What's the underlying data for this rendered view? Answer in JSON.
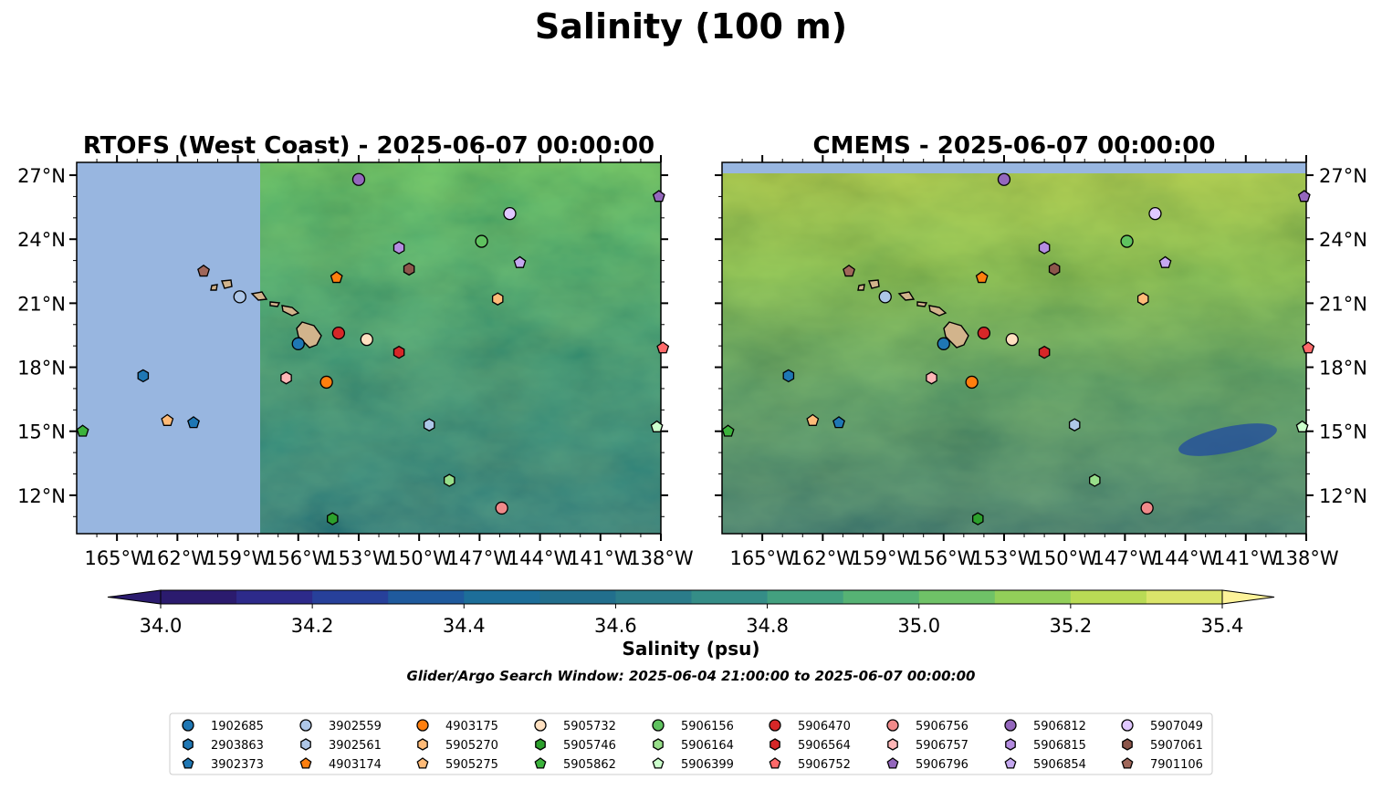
{
  "figure": {
    "title": "Salinity (100 m)",
    "colorbar_label": "Salinity (psu)",
    "colorbar_ticks": [
      "34.0",
      "34.2",
      "34.4",
      "34.6",
      "34.8",
      "35.0",
      "35.2",
      "35.4"
    ],
    "search_window": "Glider/Argo Search Window: 2025-06-04 21:00:00 to 2025-06-07 00:00:00"
  },
  "colors": {
    "land_mask": "#98b6e0",
    "island": "#d2b48c",
    "colorbar": [
      "#2b1b6e",
      "#2d2a8a",
      "#27409a",
      "#1f5a9d",
      "#1d6e99",
      "#226f8d",
      "#2b7c8a",
      "#358d87",
      "#43a07f",
      "#56b274",
      "#6fc267",
      "#92cf59",
      "#b9db55",
      "#dbe56a",
      "#fdf39a"
    ]
  },
  "panels": [
    {
      "title": "RTOFS (West Coast) - 2025-06-07 00:00:00",
      "lat_side": "left"
    },
    {
      "title": "CMEMS - 2025-06-07 00:00:00",
      "lat_side": "right"
    }
  ],
  "axes": {
    "lon_range": [
      -167,
      -138
    ],
    "lat_range": [
      10.2,
      27.6
    ],
    "lon_ticks": [
      "165°W",
      "162°W",
      "159°W",
      "156°W",
      "153°W",
      "150°W",
      "147°W",
      "144°W",
      "141°W",
      "138°W"
    ],
    "lat_ticks": [
      "27°N",
      "24°N",
      "21°N",
      "18°N",
      "15°N",
      "12°N"
    ]
  },
  "floats": [
    {
      "id": "1902685",
      "color": "#1f77b4",
      "marker": "circle",
      "lon": -156.0,
      "lat": 19.1
    },
    {
      "id": "2903863",
      "color": "#1f77b4",
      "marker": "hexagon",
      "lon": -163.7,
      "lat": 17.6
    },
    {
      "id": "3902373",
      "color": "#1f77b4",
      "marker": "pentagon",
      "lon": -161.2,
      "lat": 15.4
    },
    {
      "id": "3902559",
      "color": "#aec7e8",
      "marker": "circle",
      "lon": -158.9,
      "lat": 21.3
    },
    {
      "id": "3902561",
      "color": "#aec7e8",
      "marker": "hexagon",
      "lon": -149.5,
      "lat": 15.3
    },
    {
      "id": "4903174",
      "color": "#ff7f0e",
      "marker": "pentagon",
      "lon": -154.1,
      "lat": 22.2
    },
    {
      "id": "4903175",
      "color": "#ff7f0e",
      "marker": "circle",
      "lon": -154.6,
      "lat": 17.3
    },
    {
      "id": "5905270",
      "color": "#ffbb78",
      "marker": "hexagon",
      "lon": -146.1,
      "lat": 21.2
    },
    {
      "id": "5905275",
      "color": "#ffbb78",
      "marker": "pentagon",
      "lon": -162.5,
      "lat": 15.5
    },
    {
      "id": "5905732",
      "color": "#ffe0c0",
      "marker": "circle",
      "lon": -152.6,
      "lat": 19.3
    },
    {
      "id": "5905746",
      "color": "#2ca02c",
      "marker": "hexagon",
      "lon": -154.3,
      "lat": 10.9
    },
    {
      "id": "5905862",
      "color": "#3cb33c",
      "marker": "pentagon",
      "lon": -166.7,
      "lat": 15.0
    },
    {
      "id": "5906156",
      "color": "#5fc25f",
      "marker": "circle",
      "lon": -146.9,
      "lat": 23.9
    },
    {
      "id": "5906164",
      "color": "#98df8a",
      "marker": "hexagon",
      "lon": -148.5,
      "lat": 12.7
    },
    {
      "id": "5906399",
      "color": "#ccffcc",
      "marker": "pentagon",
      "lon": -138.2,
      "lat": 15.2
    },
    {
      "id": "5906470",
      "color": "#d62728",
      "marker": "circle",
      "lon": -154.0,
      "lat": 19.6
    },
    {
      "id": "5906564",
      "color": "#d62728",
      "marker": "hexagon",
      "lon": -151.0,
      "lat": 18.7
    },
    {
      "id": "5906752",
      "color": "#ff6a6a",
      "marker": "pentagon",
      "lon": -137.9,
      "lat": 18.9
    },
    {
      "id": "5906756",
      "color": "#f08a8a",
      "marker": "circle",
      "lon": -145.9,
      "lat": 11.4
    },
    {
      "id": "5906757",
      "color": "#ffb6b6",
      "marker": "hexagon",
      "lon": -156.6,
      "lat": 17.5
    },
    {
      "id": "5906796",
      "color": "#9467bd",
      "marker": "pentagon",
      "lon": -138.1,
      "lat": 26.0
    },
    {
      "id": "5906812",
      "color": "#9467bd",
      "marker": "circle",
      "lon": -153.0,
      "lat": 26.8
    },
    {
      "id": "5906815",
      "color": "#b48ce0",
      "marker": "hexagon",
      "lon": -151.0,
      "lat": 23.6
    },
    {
      "id": "5906854",
      "color": "#c5a8f0",
      "marker": "pentagon",
      "lon": -145.0,
      "lat": 22.9
    },
    {
      "id": "5907049",
      "color": "#e0c8ff",
      "marker": "circle",
      "lon": -145.5,
      "lat": 25.2
    },
    {
      "id": "5907061",
      "color": "#8c564b",
      "marker": "hexagon",
      "lon": -150.5,
      "lat": 22.6
    },
    {
      "id": "7901106",
      "color": "#a0675a",
      "marker": "pentagon",
      "lon": -160.7,
      "lat": 22.5
    }
  ]
}
